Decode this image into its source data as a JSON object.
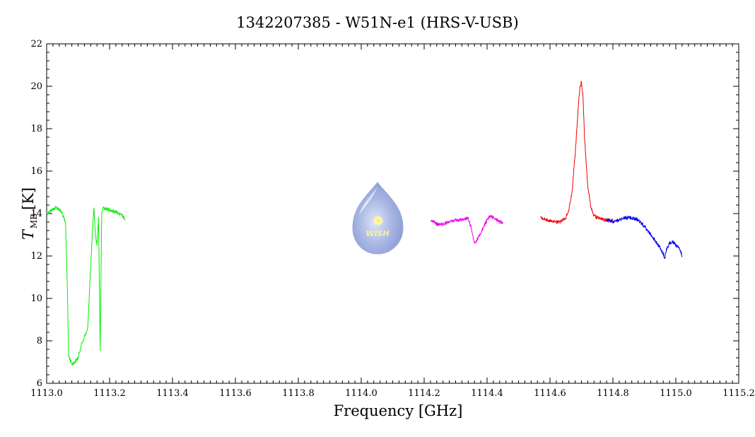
{
  "chart_data": {
    "type": "line",
    "title": "1342207385 - W51N-e1 (HRS-V-USB)",
    "xlabel": "Frequency [GHz]",
    "ylabel_main": "T",
    "ylabel_sub": "MB",
    "ylabel_unit": "[K]",
    "xlim": [
      1113.0,
      1115.2
    ],
    "ylim": [
      6,
      22
    ],
    "x_ticks": [
      1113.0,
      1113.2,
      1113.4,
      1113.6,
      1113.8,
      1114.0,
      1114.2,
      1114.4,
      1114.6,
      1114.8,
      1115.0,
      1115.2
    ],
    "x_tick_labels": [
      "1113.0",
      "1113.2",
      "1113.4",
      "1113.6",
      "1113.8",
      "1114.0",
      "1114.2",
      "1114.4",
      "1114.6",
      "1114.8",
      "1115.0",
      "1115.2"
    ],
    "y_ticks": [
      6,
      8,
      10,
      12,
      14,
      16,
      18,
      20,
      22
    ],
    "y_tick_labels": [
      "6",
      "8",
      "10",
      "12",
      "14",
      "16",
      "18",
      "20",
      "22"
    ],
    "grid": false,
    "series": [
      {
        "color": "#00ee00",
        "x": [
          1113.0,
          1113.01,
          1113.02,
          1113.03,
          1113.04,
          1113.05,
          1113.06,
          1113.065,
          1113.07,
          1113.08,
          1113.09,
          1113.1,
          1113.11,
          1113.12,
          1113.13,
          1113.14,
          1113.15,
          1113.155,
          1113.16,
          1113.165,
          1113.17,
          1113.175,
          1113.18,
          1113.19,
          1113.2,
          1113.21,
          1113.22,
          1113.23,
          1113.24,
          1113.25
        ],
        "y": [
          14.0,
          14.1,
          14.2,
          14.3,
          14.2,
          14.0,
          13.5,
          11.0,
          7.3,
          6.9,
          7.0,
          7.2,
          7.8,
          8.2,
          8.5,
          11.5,
          14.3,
          13.0,
          12.5,
          13.8,
          7.5,
          14.0,
          14.3,
          14.2,
          14.2,
          14.1,
          14.1,
          14.0,
          13.9,
          13.7
        ]
      },
      {
        "color": "#ee00ee",
        "x": [
          1114.22,
          1114.24,
          1114.26,
          1114.28,
          1114.3,
          1114.32,
          1114.34,
          1114.35,
          1114.36,
          1114.37,
          1114.38,
          1114.39,
          1114.4,
          1114.41,
          1114.42,
          1114.43,
          1114.44,
          1114.45
        ],
        "y": [
          13.7,
          13.5,
          13.5,
          13.6,
          13.7,
          13.7,
          13.8,
          13.3,
          12.6,
          12.8,
          13.1,
          13.4,
          13.7,
          13.9,
          13.8,
          13.7,
          13.6,
          13.6
        ]
      },
      {
        "color": "#ee0000",
        "x": [
          1114.57,
          1114.59,
          1114.61,
          1114.63,
          1114.65,
          1114.66,
          1114.67,
          1114.68,
          1114.69,
          1114.695,
          1114.7,
          1114.705,
          1114.71,
          1114.72,
          1114.73,
          1114.74,
          1114.75,
          1114.77,
          1114.8
        ],
        "y": [
          13.8,
          13.7,
          13.6,
          13.6,
          13.8,
          14.2,
          15.0,
          16.8,
          19.0,
          20.0,
          20.2,
          19.5,
          17.5,
          15.3,
          14.3,
          13.9,
          13.8,
          13.7,
          13.7
        ]
      },
      {
        "color": "#0000ee",
        "x": [
          1114.78,
          1114.8,
          1114.82,
          1114.84,
          1114.86,
          1114.88,
          1114.9,
          1114.92,
          1114.94,
          1114.95,
          1114.96,
          1114.965,
          1114.97,
          1114.98,
          1114.99,
          1115.0,
          1115.01,
          1115.02
        ],
        "y": [
          13.7,
          13.6,
          13.7,
          13.8,
          13.8,
          13.7,
          13.4,
          13.0,
          12.6,
          12.4,
          12.1,
          11.9,
          12.3,
          12.6,
          12.7,
          12.5,
          12.4,
          12.0
        ]
      }
    ]
  },
  "logo": {
    "text": "WISH"
  }
}
